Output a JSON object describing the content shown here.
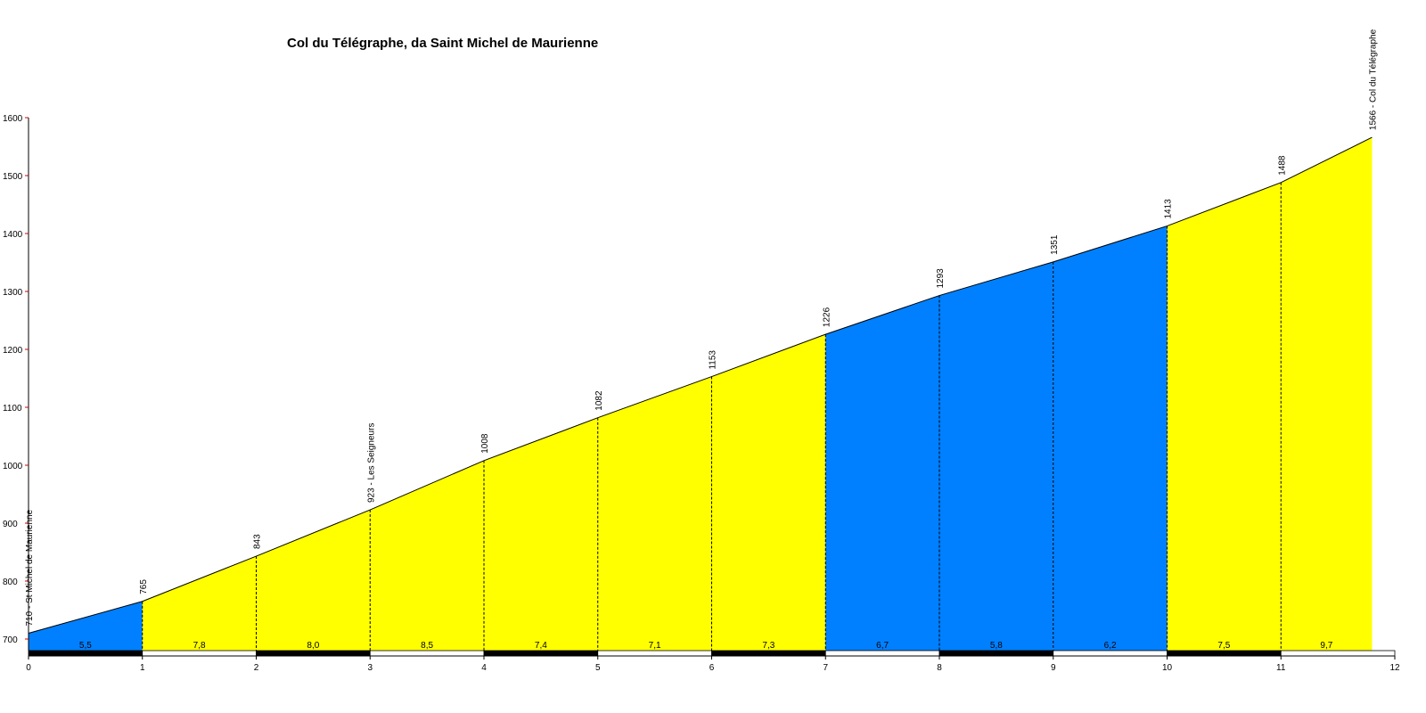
{
  "chart_data": {
    "type": "area",
    "title": "Col du Télégraphe, da Saint Michel de Maurienne",
    "xlabel": "",
    "ylabel": "",
    "xlim": [
      0,
      12
    ],
    "ylim": [
      670,
      1600
    ],
    "x_ticks": [
      "0",
      "1",
      "2",
      "3",
      "4",
      "5",
      "6",
      "7",
      "8",
      "9",
      "10",
      "11",
      "12"
    ],
    "y_ticks": [
      "700",
      "800",
      "900",
      "1000",
      "1100",
      "1200",
      "1300",
      "1400",
      "1500",
      "1600"
    ],
    "points": [
      {
        "x": 0,
        "y": 710,
        "label": "710 - St Michel de Maurienne"
      },
      {
        "x": 1,
        "y": 765,
        "label": "765"
      },
      {
        "x": 2,
        "y": 843,
        "label": "843"
      },
      {
        "x": 3,
        "y": 923,
        "label": "923 - Les Seigneurs"
      },
      {
        "x": 4,
        "y": 1008,
        "label": "1008"
      },
      {
        "x": 5,
        "y": 1082,
        "label": "1082"
      },
      {
        "x": 6,
        "y": 1153,
        "label": "1153"
      },
      {
        "x": 7,
        "y": 1226,
        "label": "1226"
      },
      {
        "x": 8,
        "y": 1293,
        "label": "1293"
      },
      {
        "x": 9,
        "y": 1351,
        "label": "1351"
      },
      {
        "x": 10,
        "y": 1413,
        "label": "1413"
      },
      {
        "x": 11,
        "y": 1488,
        "label": "1488"
      },
      {
        "x": 11.8,
        "y": 1566,
        "label": "1566 - Col du Télégraphe"
      }
    ],
    "segments": [
      {
        "from": 0,
        "to": 1,
        "gradient": "5,5",
        "color": "#0080ff"
      },
      {
        "from": 1,
        "to": 2,
        "gradient": "7,8",
        "color": "#ffff00"
      },
      {
        "from": 2,
        "to": 3,
        "gradient": "8,0",
        "color": "#ffff00"
      },
      {
        "from": 3,
        "to": 4,
        "gradient": "8,5",
        "color": "#ffff00"
      },
      {
        "from": 4,
        "to": 5,
        "gradient": "7,4",
        "color": "#ffff00"
      },
      {
        "from": 5,
        "to": 6,
        "gradient": "7,1",
        "color": "#ffff00"
      },
      {
        "from": 6,
        "to": 7,
        "gradient": "7,3",
        "color": "#ffff00"
      },
      {
        "from": 7,
        "to": 8,
        "gradient": "6,7",
        "color": "#0080ff"
      },
      {
        "from": 8,
        "to": 9,
        "gradient": "5,8",
        "color": "#0080ff"
      },
      {
        "from": 9,
        "to": 10,
        "gradient": "6,2",
        "color": "#0080ff"
      },
      {
        "from": 10,
        "to": 11,
        "gradient": "7,5",
        "color": "#ffff00"
      },
      {
        "from": 11,
        "to": 11.8,
        "gradient": "9,7",
        "color": "#ffff00"
      }
    ],
    "grid": false,
    "legend": "none"
  }
}
